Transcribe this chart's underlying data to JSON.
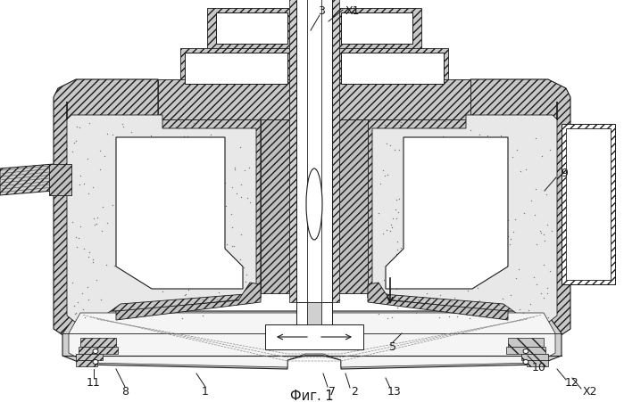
{
  "fig_label": "Фиг. 1",
  "bg": "#ffffff",
  "lc": "#1a1a1a",
  "gray_fill": "#d8d8d8",
  "light_fill": "#f0f0f0",
  "white": "#ffffff",
  "dot_color": "#888888",
  "hatch_fill": "#c0c0c0",
  "figsize": [
    6.99,
    4.52
  ],
  "dpi": 100
}
